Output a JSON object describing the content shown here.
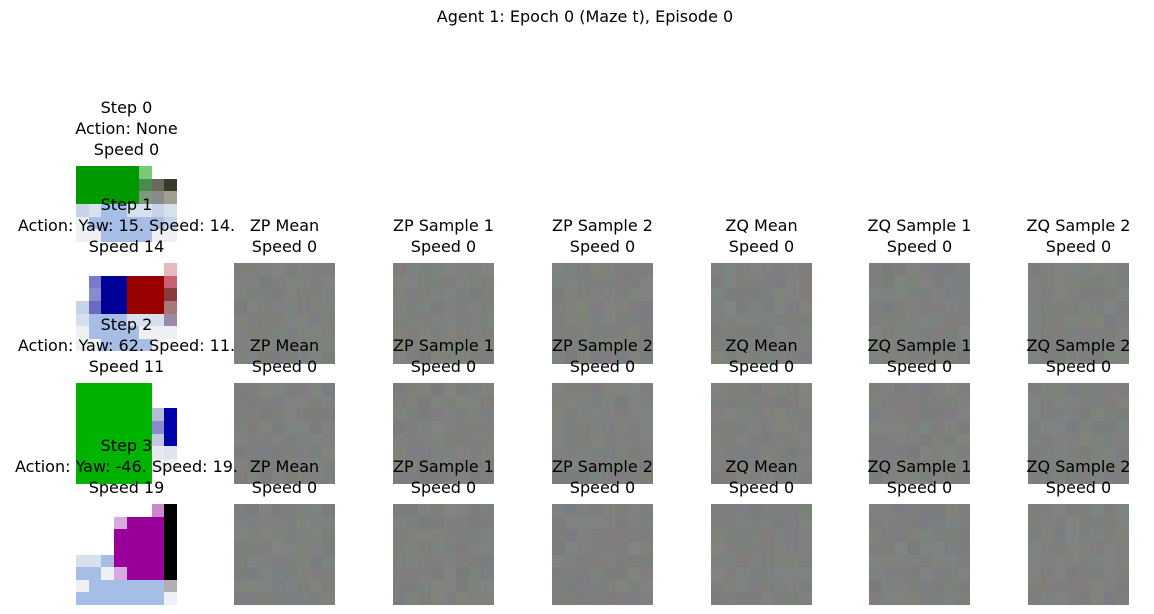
{
  "figure": {
    "title": "Agent 1: Epoch 0 (Maze t), Episode 0"
  },
  "rows": [
    {
      "observation": {
        "title_lines": [
          "Step 0",
          "Action: None",
          "Speed 0"
        ],
        "pixels": [
          [
            "#009900",
            "#009900",
            "#009900",
            "#009900",
            "#009900",
            "#76cc76",
            "#ffffff",
            "#ffffff"
          ],
          [
            "#009900",
            "#009900",
            "#009900",
            "#009900",
            "#009900",
            "#4a8a4a",
            "#6a6a5a",
            "#3a3a2a"
          ],
          [
            "#009900",
            "#009900",
            "#009900",
            "#009900",
            "#009900",
            "#7a9a7a",
            "#8a8a8a",
            "#a0a090"
          ],
          [
            "#c6d4ea",
            "#d7e0ee",
            "#a6bde6",
            "#a6bde6",
            "#d7e0ee",
            "#d7e0ee",
            "#c6d4ea",
            "#d7e0ee"
          ],
          [
            "#eef0f4",
            "#a6bde6",
            "#a6bde6",
            "#a6bde6",
            "#a6bde6",
            "#a6bde6",
            "#a6bde6",
            "#c6d4ea"
          ],
          [
            "#eef0f4",
            "#eef0f4",
            "#a6bde6",
            "#a6bde6",
            "#a6bde6",
            "#a6bde6",
            "#eef0f4",
            "#eef0f4"
          ],
          [
            "#ffffff",
            "#ffffff",
            "#ffffff",
            "#ffffff",
            "#ffffff",
            "#ffffff",
            "#ffffff",
            "#ffffff"
          ],
          [
            "#ffffff",
            "#ffffff",
            "#ffffff",
            "#ffffff",
            "#ffffff",
            "#ffffff",
            "#ffffff",
            "#ffffff"
          ]
        ]
      },
      "latents": []
    },
    {
      "observation": {
        "title_lines": [
          "Step 1",
          "Action: Yaw: 15. Speed: 14.",
          "Speed 14"
        ],
        "pixels": [
          [
            "#ffffff",
            "#ffffff",
            "#ffffff",
            "#ffffff",
            "#ffffff",
            "#ffffff",
            "#ffffff",
            "#e8b8c0"
          ],
          [
            "#ffffff",
            "#7a7acc",
            "#000099",
            "#000099",
            "#990000",
            "#990000",
            "#990000",
            "#c86070"
          ],
          [
            "#ffffff",
            "#8a8ad0",
            "#000099",
            "#000099",
            "#990000",
            "#990000",
            "#990000",
            "#8a3a3a"
          ],
          [
            "#c6d4ea",
            "#6a6ac0",
            "#000099",
            "#000099",
            "#990000",
            "#990000",
            "#990000",
            "#a87878"
          ],
          [
            "#d7e0ee",
            "#a6bde6",
            "#a6bde6",
            "#a6bde6",
            "#d7e0ee",
            "#d7e0ee",
            "#d7e0ee",
            "#9a8aa8"
          ],
          [
            "#eef0f4",
            "#a6bde6",
            "#a6bde6",
            "#a6bde6",
            "#a6bde6",
            "#eef0f4",
            "#eef0f4",
            "#eef0f4"
          ],
          [
            "#eef0f4",
            "#eef0f4",
            "#a6bde6",
            "#a6bde6",
            "#a6bde6",
            "#a6bde6",
            "#eef0f4",
            "#ffffff"
          ],
          [
            "#ffffff",
            "#ffffff",
            "#ffffff",
            "#ffffff",
            "#ffffff",
            "#ffffff",
            "#ffffff",
            "#ffffff"
          ]
        ]
      },
      "latents": [
        {
          "title_lines": [
            "ZP Mean",
            "Speed 0"
          ],
          "seed": 11
        },
        {
          "title_lines": [
            "ZP Sample 1",
            "Speed 0"
          ],
          "seed": 12
        },
        {
          "title_lines": [
            "ZP Sample 2",
            "Speed 0"
          ],
          "seed": 13
        },
        {
          "title_lines": [
            "ZQ Mean",
            "Speed 0"
          ],
          "seed": 14
        },
        {
          "title_lines": [
            "ZQ Sample 1",
            "Speed 0"
          ],
          "seed": 15
        },
        {
          "title_lines": [
            "ZQ Sample 2",
            "Speed 0"
          ],
          "seed": 16
        }
      ]
    },
    {
      "observation": {
        "title_lines": [
          "Step 2",
          "Action: Yaw: 62. Speed: 11.",
          "Speed 11"
        ],
        "pixels": [
          [
            "#00b300",
            "#00b300",
            "#00b300",
            "#00b300",
            "#00b300",
            "#00b300",
            "#ffffff",
            "#ffffff"
          ],
          [
            "#00b300",
            "#00b300",
            "#00b300",
            "#00b300",
            "#00b300",
            "#00b300",
            "#ffffff",
            "#ffffff"
          ],
          [
            "#00b300",
            "#00b300",
            "#00b300",
            "#00b300",
            "#00b300",
            "#00b300",
            "#b8bbd8",
            "#0000a8"
          ],
          [
            "#00b300",
            "#00b300",
            "#00b300",
            "#00b300",
            "#00b300",
            "#00b300",
            "#8a8ad0",
            "#0000a8"
          ],
          [
            "#00b300",
            "#00b300",
            "#00b300",
            "#00b300",
            "#00b300",
            "#00b300",
            "#c6c6e6",
            "#0000a8"
          ],
          [
            "#00b300",
            "#00b300",
            "#00b300",
            "#00b300",
            "#00b300",
            "#00b300",
            "#e8e8f0",
            "#e0e4ee"
          ],
          [
            "#00b300",
            "#00b300",
            "#00b300",
            "#00b300",
            "#00b300",
            "#00b300",
            "#eef0f4",
            "#eef0f4"
          ],
          [
            "#00b300",
            "#00b300",
            "#00b300",
            "#00b300",
            "#00b300",
            "#00b300",
            "#ffffff",
            "#ffffff"
          ]
        ]
      },
      "latents": [
        {
          "title_lines": [
            "ZP Mean",
            "Speed 0"
          ],
          "seed": 21
        },
        {
          "title_lines": [
            "ZP Sample 1",
            "Speed 0"
          ],
          "seed": 22
        },
        {
          "title_lines": [
            "ZP Sample 2",
            "Speed 0"
          ],
          "seed": 23
        },
        {
          "title_lines": [
            "ZQ Mean",
            "Speed 0"
          ],
          "seed": 24
        },
        {
          "title_lines": [
            "ZQ Sample 1",
            "Speed 0"
          ],
          "seed": 25
        },
        {
          "title_lines": [
            "ZQ Sample 2",
            "Speed 0"
          ],
          "seed": 26
        }
      ]
    },
    {
      "observation": {
        "title_lines": [
          "Step 3",
          "Action: Yaw: -46. Speed: 19.",
          "Speed 19"
        ],
        "pixels": [
          [
            "#ffffff",
            "#ffffff",
            "#ffffff",
            "#ffffff",
            "#ffffff",
            "#ffffff",
            "#cc88cc",
            "#000000"
          ],
          [
            "#ffffff",
            "#ffffff",
            "#ffffff",
            "#d8a8e0",
            "#990099",
            "#990099",
            "#990099",
            "#000000"
          ],
          [
            "#ffffff",
            "#ffffff",
            "#ffffff",
            "#990099",
            "#990099",
            "#990099",
            "#990099",
            "#000000"
          ],
          [
            "#ffffff",
            "#ffffff",
            "#ffffff",
            "#990099",
            "#990099",
            "#990099",
            "#990099",
            "#000000"
          ],
          [
            "#d7e0ee",
            "#d7e0ee",
            "#a6bde6",
            "#990099",
            "#990099",
            "#990099",
            "#990099",
            "#000000"
          ],
          [
            "#a6bde6",
            "#a6bde6",
            "#eef0f4",
            "#d8a8e0",
            "#990099",
            "#990099",
            "#990099",
            "#000000"
          ],
          [
            "#eef0f4",
            "#a6bde6",
            "#a6bde6",
            "#a6bde6",
            "#a6bde6",
            "#a6bde6",
            "#a6bde6",
            "#b0b0b0"
          ],
          [
            "#a6bde6",
            "#a6bde6",
            "#a6bde6",
            "#a6bde6",
            "#a6bde6",
            "#a6bde6",
            "#a6bde6",
            "#eef0f4"
          ]
        ]
      },
      "latents": [
        {
          "title_lines": [
            "ZP Mean",
            "Speed 0"
          ],
          "seed": 31
        },
        {
          "title_lines": [
            "ZP Sample 1",
            "Speed 0"
          ],
          "seed": 32
        },
        {
          "title_lines": [
            "ZP Sample 2",
            "Speed 0"
          ],
          "seed": 33
        },
        {
          "title_lines": [
            "ZQ Mean",
            "Speed 0"
          ],
          "seed": 34
        },
        {
          "title_lines": [
            "ZQ Sample 1",
            "Speed 0"
          ],
          "seed": 35
        },
        {
          "title_lines": [
            "ZQ Sample 2",
            "Speed 0"
          ],
          "seed": 36
        }
      ]
    }
  ]
}
